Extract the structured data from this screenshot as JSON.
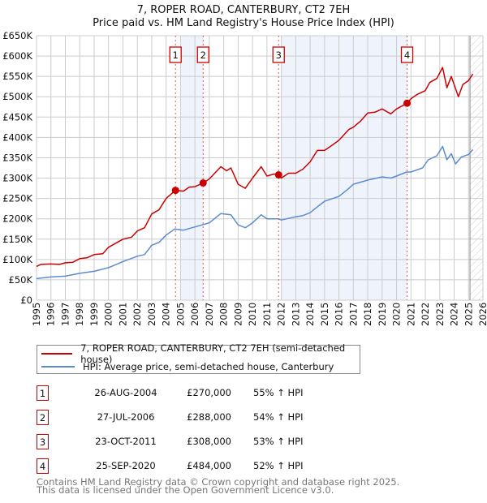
{
  "chart_data": {
    "type": "line",
    "title": "7, ROPER ROAD, CANTERBURY, CT2 7EH",
    "subtitle": "Price paid vs. HM Land Registry's House Price Index (HPI)",
    "xlim": [
      1995,
      2026
    ],
    "ylim": [
      0,
      650000
    ],
    "x_ticks": [
      "1995",
      "1996",
      "1997",
      "1998",
      "1999",
      "2000",
      "2001",
      "2002",
      "2003",
      "2004",
      "2005",
      "2006",
      "2007",
      "2008",
      "2009",
      "2010",
      "2011",
      "2012",
      "2013",
      "2014",
      "2015",
      "2016",
      "2017",
      "2018",
      "2019",
      "2020",
      "2021",
      "2022",
      "2023",
      "2024",
      "2025",
      "2026"
    ],
    "y_ticks": [
      {
        "v": 0,
        "label": "£0"
      },
      {
        "v": 50000,
        "label": "£50K"
      },
      {
        "v": 100000,
        "label": "£100K"
      },
      {
        "v": 150000,
        "label": "£150K"
      },
      {
        "v": 200000,
        "label": "£200K"
      },
      {
        "v": 250000,
        "label": "£250K"
      },
      {
        "v": 300000,
        "label": "£300K"
      },
      {
        "v": 350000,
        "label": "£350K"
      },
      {
        "v": 400000,
        "label": "£400K"
      },
      {
        "v": 450000,
        "label": "£450K"
      },
      {
        "v": 500000,
        "label": "£500K"
      },
      {
        "v": 550000,
        "label": "£550K"
      },
      {
        "v": 600000,
        "label": "£600K"
      },
      {
        "v": 650000,
        "label": "£650K"
      }
    ],
    "grid": true,
    "shaded_ranges": [
      [
        2005.0,
        2006.57
      ],
      [
        2012.0,
        2020.73
      ]
    ],
    "forecast_from": 2025.1,
    "series": [
      {
        "name": "7, ROPER ROAD, CANTERBURY, CT2 7EH (semi-detached house)",
        "color": "#cc0000",
        "x": [
          1995,
          1995.3,
          1996,
          1996.6,
          1997,
          1997.5,
          1998,
          1998.5,
          1999,
          1999.6,
          2000,
          2000.6,
          2001,
          2001.6,
          2002,
          2002.5,
          2003,
          2003.5,
          2004,
          2004.65,
          2005.2,
          2005.6,
          2006,
          2006.57,
          2007,
          2007.8,
          2008.2,
          2008.5,
          2009,
          2009.5,
          2010,
          2010.6,
          2011,
          2011.5,
          2011.81,
          2012,
          2012.5,
          2013,
          2013.5,
          2014,
          2014.5,
          2015,
          2015.5,
          2016,
          2016.7,
          2017,
          2017.5,
          2018,
          2018.5,
          2019,
          2019.6,
          2020,
          2020.73,
          2021,
          2021.4,
          2022,
          2022.3,
          2022.8,
          2023.2,
          2023.5,
          2023.8,
          2024.3,
          2024.6,
          2025,
          2025.3
        ],
        "y": [
          83000,
          88000,
          89000,
          88000,
          92000,
          93000,
          102000,
          104000,
          112000,
          114000,
          130000,
          142000,
          150000,
          155000,
          170000,
          178000,
          212000,
          222000,
          250000,
          270000,
          268000,
          278000,
          279000,
          288000,
          298000,
          328000,
          318000,
          325000,
          285000,
          275000,
          300000,
          328000,
          305000,
          310000,
          308000,
          300000,
          312000,
          312000,
          322000,
          340000,
          368000,
          368000,
          380000,
          393000,
          420000,
          425000,
          440000,
          460000,
          462000,
          470000,
          458000,
          470000,
          484000,
          495000,
          505000,
          515000,
          535000,
          545000,
          572000,
          522000,
          550000,
          500000,
          530000,
          540000,
          556000
        ]
      },
      {
        "name": "HPI: Average price, semi-detached house, Canterbury",
        "color": "#5b8bd0",
        "x": [
          1995,
          1996,
          1997,
          1998,
          1999,
          2000,
          2001,
          2002,
          2002.5,
          2003,
          2003.5,
          2004,
          2004.6,
          2005.2,
          2006,
          2007,
          2007.8,
          2008.5,
          2009,
          2009.5,
          2010,
          2010.6,
          2011,
          2011.8,
          2012,
          2013,
          2013.5,
          2014,
          2014.6,
          2015,
          2016,
          2016.7,
          2017,
          2018,
          2019,
          2019.6,
          2020,
          2020.7,
          2021,
          2021.8,
          2022.2,
          2022.8,
          2023.2,
          2023.5,
          2023.8,
          2024.1,
          2024.5,
          2025,
          2025.3
        ],
        "y": [
          53000,
          57000,
          59000,
          66000,
          71000,
          80000,
          95000,
          108000,
          112000,
          135000,
          142000,
          160000,
          175000,
          172000,
          180000,
          190000,
          213000,
          210000,
          185000,
          178000,
          190000,
          210000,
          200000,
          200000,
          197000,
          205000,
          208000,
          215000,
          232000,
          243000,
          255000,
          275000,
          285000,
          295000,
          303000,
          300000,
          305000,
          315000,
          315000,
          325000,
          345000,
          355000,
          378000,
          345000,
          360000,
          335000,
          352000,
          358000,
          370000
        ]
      }
    ],
    "sales": [
      {
        "n": "1",
        "x": 2004.65,
        "y": 270000
      },
      {
        "n": "2",
        "x": 2006.57,
        "y": 288000
      },
      {
        "n": "3",
        "x": 2011.81,
        "y": 308000
      },
      {
        "n": "4",
        "x": 2020.73,
        "y": 484000
      }
    ]
  },
  "legend": {
    "property": "7, ROPER ROAD, CANTERBURY, CT2 7EH (semi-detached house)",
    "hpi": "HPI: Average price, semi-detached house, Canterbury"
  },
  "transactions": [
    {
      "n": "1",
      "date": "26-AUG-2004",
      "price": "£270,000",
      "hpi": "55% ↑ HPI"
    },
    {
      "n": "2",
      "date": "27-JUL-2006",
      "price": "£288,000",
      "hpi": "54% ↑ HPI"
    },
    {
      "n": "3",
      "date": "23-OCT-2011",
      "price": "£308,000",
      "hpi": "53% ↑ HPI"
    },
    {
      "n": "4",
      "date": "25-SEP-2020",
      "price": "£484,000",
      "hpi": "52% ↑ HPI"
    }
  ],
  "footer": {
    "line1": "Contains HM Land Registry data © Crown copyright and database right 2025.",
    "line2": "This data is licensed under the Open Government Licence v3.0."
  },
  "colors": {
    "property": "#cc0000",
    "hpi": "#5b8bd0",
    "band": "#eef3fc"
  }
}
